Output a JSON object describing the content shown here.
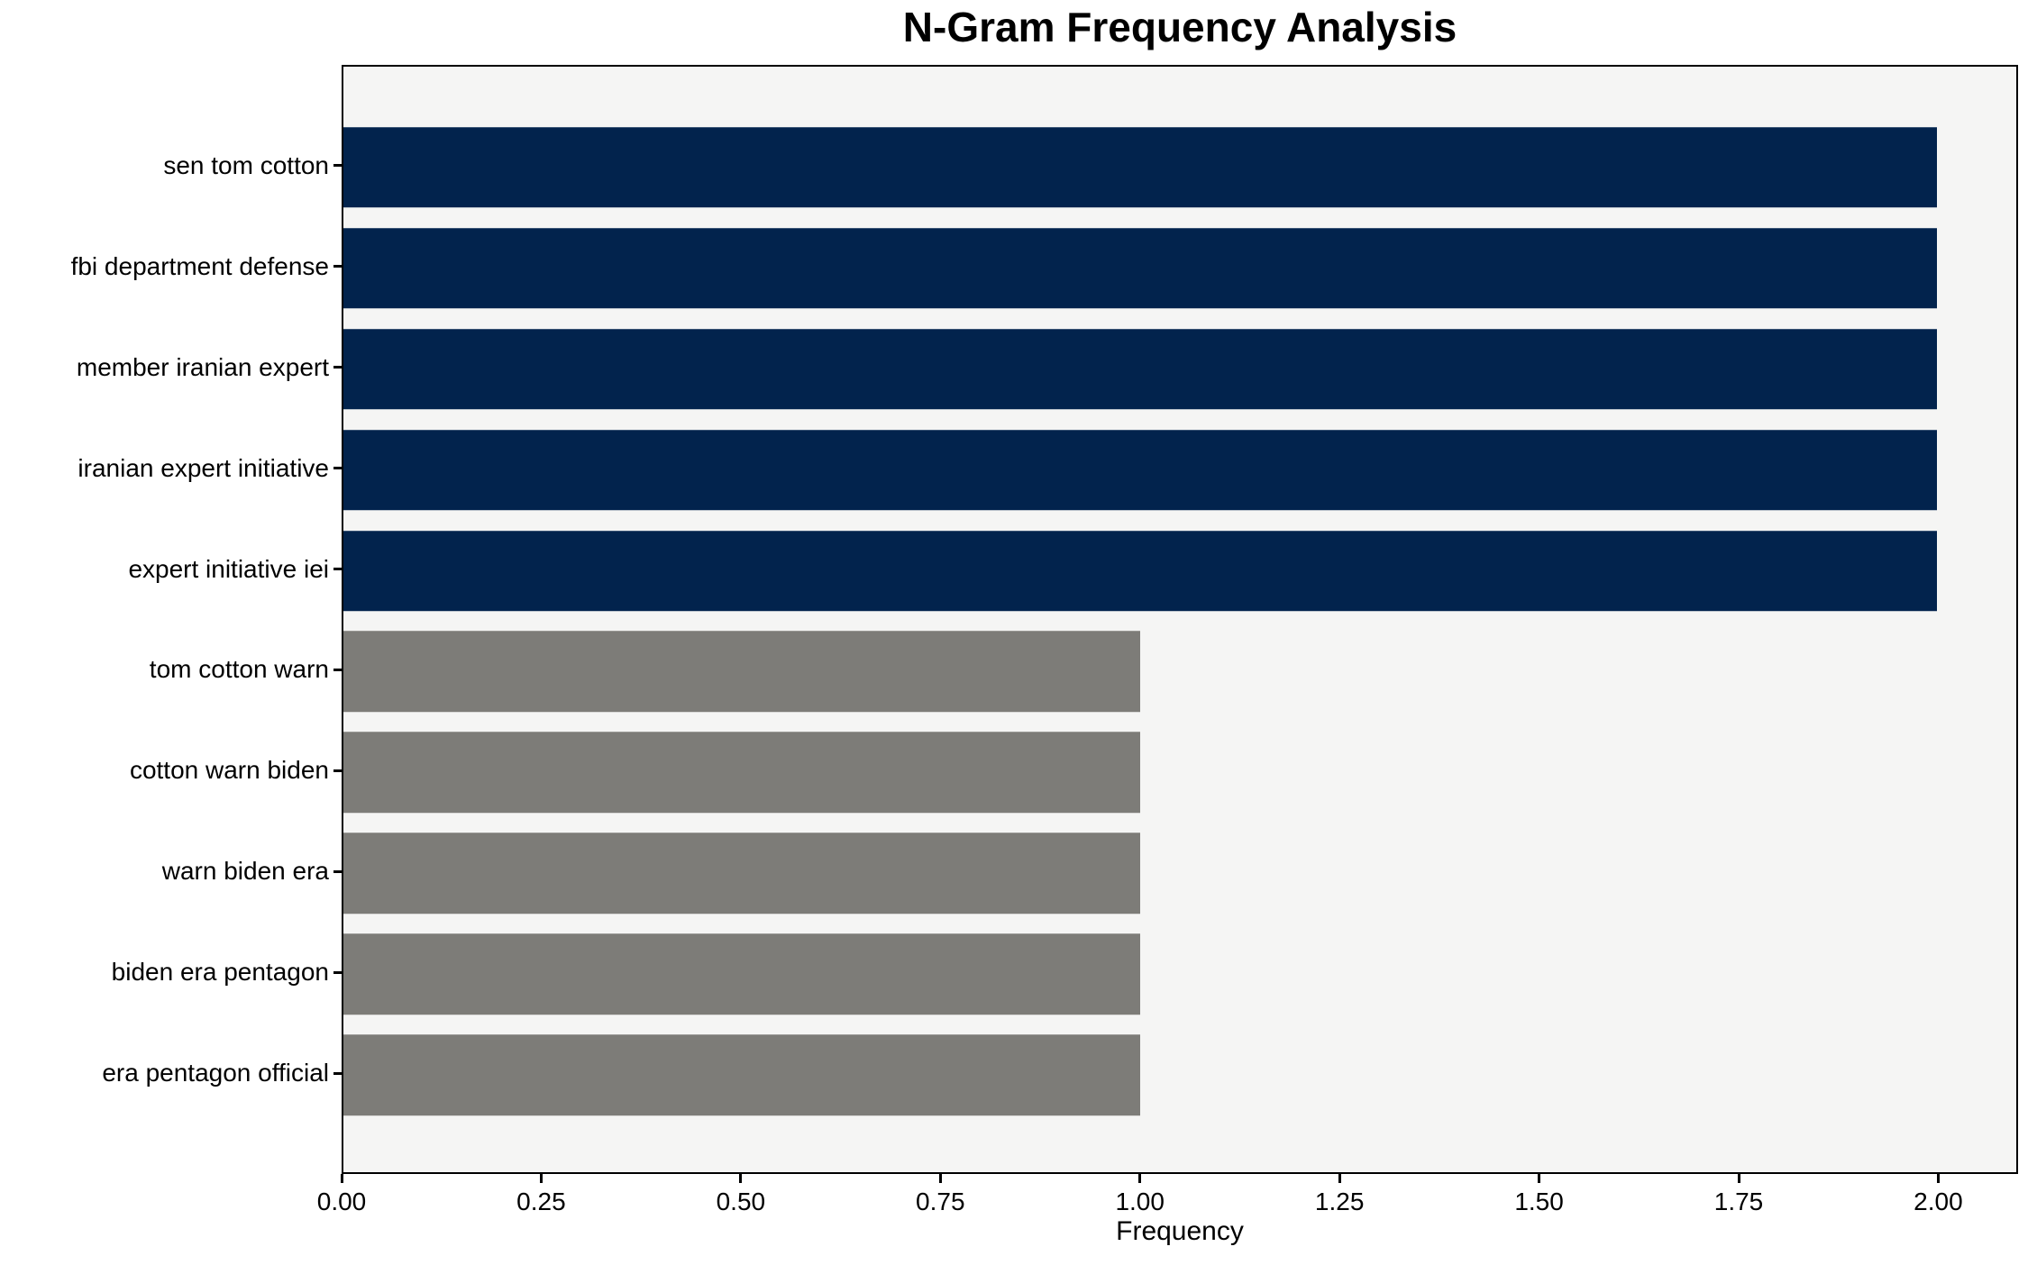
{
  "chart_data": {
    "type": "bar",
    "orientation": "horizontal",
    "title": "N-Gram Frequency Analysis",
    "xlabel": "Frequency",
    "ylabel": "",
    "categories": [
      "sen tom cotton",
      "fbi department defense",
      "member iranian expert",
      "iranian expert initiative",
      "expert initiative iei",
      "tom cotton warn",
      "cotton warn biden",
      "warn biden era",
      "biden era pentagon",
      "era pentagon official"
    ],
    "values": [
      2,
      2,
      2,
      2,
      2,
      1,
      1,
      1,
      1,
      1
    ],
    "bar_colors": [
      "#02234d",
      "#02234d",
      "#02234d",
      "#02234d",
      "#02234d",
      "#7d7c78",
      "#7d7c78",
      "#7d7c78",
      "#7d7c78",
      "#7d7c78"
    ],
    "xlim": [
      0,
      2.1
    ],
    "xticks": [
      0.0,
      0.25,
      0.5,
      0.75,
      1.0,
      1.25,
      1.5,
      1.75,
      2.0
    ],
    "xtick_labels": [
      "0.00",
      "0.25",
      "0.50",
      "0.75",
      "1.00",
      "1.25",
      "1.50",
      "1.75",
      "2.00"
    ],
    "grid": false,
    "legend": null,
    "plot_background": "#f5f5f4",
    "figure_background": "#ffffff",
    "spine_color": "#000000",
    "bar_height_fraction": 0.8
  }
}
